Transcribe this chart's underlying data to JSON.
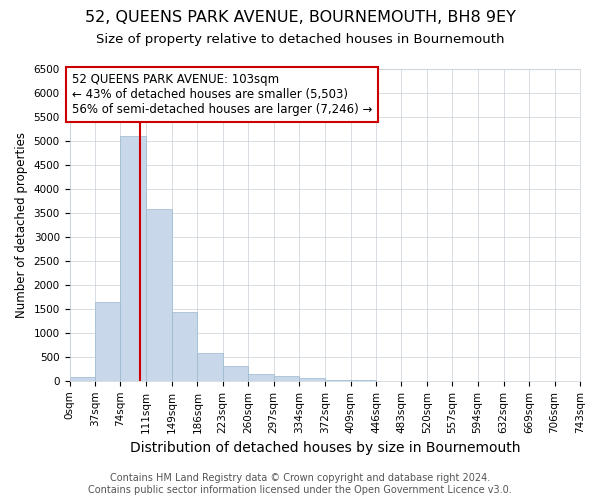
{
  "title": "52, QUEENS PARK AVENUE, BOURNEMOUTH, BH8 9EY",
  "subtitle": "Size of property relative to detached houses in Bournemouth",
  "xlabel": "Distribution of detached houses by size in Bournemouth",
  "ylabel": "Number of detached properties",
  "footer_line1": "Contains HM Land Registry data © Crown copyright and database right 2024.",
  "footer_line2": "Contains public sector information licensed under the Open Government Licence v3.0.",
  "bin_edges": [
    0,
    37,
    74,
    111,
    149,
    186,
    223,
    260,
    297,
    334,
    372,
    409,
    446,
    483,
    520,
    557,
    594,
    632,
    669,
    706,
    743
  ],
  "bar_heights": [
    75,
    1650,
    5100,
    3580,
    1430,
    580,
    300,
    150,
    100,
    50,
    20,
    10,
    0,
    0,
    0,
    0,
    0,
    0,
    0,
    0
  ],
  "bar_color": "#c8d8ea",
  "bar_edge_color": "#9ab8d0",
  "vline_x": 103,
  "vline_color": "#cc0000",
  "annotation_title": "52 QUEENS PARK AVENUE: 103sqm",
  "annotation_line1": "← 43% of detached houses are smaller (5,503)",
  "annotation_line2": "56% of semi-detached houses are larger (7,246) →",
  "annotation_box_color": "#ffffff",
  "annotation_box_edge": "#cc0000",
  "ylim": [
    0,
    6500
  ],
  "yticks": [
    0,
    500,
    1000,
    1500,
    2000,
    2500,
    3000,
    3500,
    4000,
    4500,
    5000,
    5500,
    6000,
    6500
  ],
  "background_color": "#ffffff",
  "grid_color": "#c8d0d8",
  "title_fontsize": 11.5,
  "subtitle_fontsize": 9.5,
  "xlabel_fontsize": 10,
  "ylabel_fontsize": 8.5,
  "tick_fontsize": 7.5,
  "annotation_fontsize": 8.5,
  "footer_fontsize": 7
}
